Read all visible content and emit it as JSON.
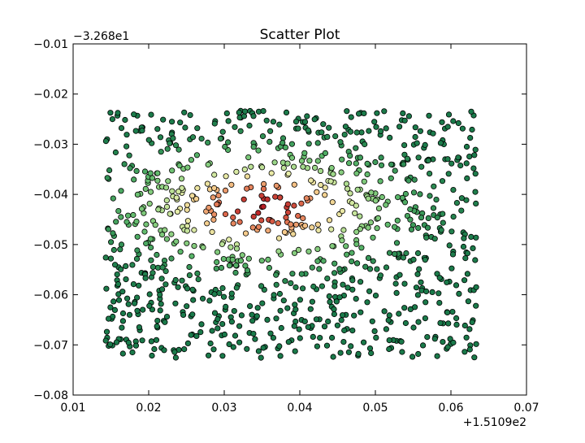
{
  "chart_data": {
    "type": "scatter",
    "title": "Scatter Plot",
    "xlabel": "",
    "ylabel": "",
    "x_offset_label": "+1.5109e2",
    "y_offset_label": "−3.268e1",
    "xlim": [
      0.01,
      0.07
    ],
    "ylim": [
      -0.08,
      -0.01
    ],
    "x_tick_values": [
      0.01,
      0.02,
      0.03,
      0.04,
      0.05,
      0.06,
      0.07
    ],
    "x_tick_labels": [
      "0.01",
      "0.02",
      "0.03",
      "0.04",
      "0.05",
      "0.06",
      "0.07"
    ],
    "y_tick_values": [
      -0.01,
      -0.02,
      -0.03,
      -0.04,
      -0.05,
      -0.06,
      -0.07,
      -0.08
    ],
    "y_tick_labels": [
      "−0.01",
      "−0.02",
      "−0.03",
      "−0.04",
      "−0.05",
      "−0.06",
      "−0.07",
      "−0.08"
    ],
    "grid": false,
    "legend": "none",
    "colormap": [
      "#1a7a4a",
      "#5cb86a",
      "#9fd88a",
      "#e8eeaa",
      "#f6c98a",
      "#e07050",
      "#b81e24"
    ],
    "color_center": [
      0.035,
      -0.0425
    ],
    "point_count": 1000,
    "x_range": [
      0.0142,
      0.0634
    ],
    "y_range": [
      -0.0727,
      -0.0233
    ],
    "points": [
      [
        0.0152,
        -0.025
      ],
      [
        0.0185,
        -0.0243
      ],
      [
        0.0219,
        -0.0251
      ],
      [
        0.0255,
        -0.0242
      ],
      [
        0.0288,
        -0.0254
      ],
      [
        0.0322,
        -0.0247
      ],
      [
        0.0365,
        -0.0255
      ],
      [
        0.0398,
        -0.0249
      ],
      [
        0.0431,
        -0.026
      ],
      [
        0.0468,
        -0.0246
      ],
      [
        0.0502,
        -0.0238
      ],
      [
        0.0535,
        -0.0252
      ],
      [
        0.0571,
        -0.0243
      ],
      [
        0.061,
        -0.0258
      ],
      [
        0.0628,
        -0.0271
      ],
      [
        0.0145,
        -0.029
      ],
      [
        0.0171,
        -0.0281
      ],
      [
        0.0204,
        -0.0298
      ],
      [
        0.0236,
        -0.0302
      ],
      [
        0.027,
        -0.0289
      ],
      [
        0.0305,
        -0.0296
      ],
      [
        0.034,
        -0.0301
      ],
      [
        0.0378,
        -0.0288
      ],
      [
        0.0412,
        -0.0299
      ],
      [
        0.0447,
        -0.0284
      ],
      [
        0.0483,
        -0.0295
      ],
      [
        0.0519,
        -0.0287
      ],
      [
        0.0551,
        -0.0301
      ],
      [
        0.0589,
        -0.0292
      ],
      [
        0.0621,
        -0.0305
      ],
      [
        0.0148,
        -0.0352
      ],
      [
        0.0178,
        -0.0343
      ],
      [
        0.0211,
        -0.0358
      ],
      [
        0.0246,
        -0.0349
      ],
      [
        0.0281,
        -0.0338
      ],
      [
        0.0316,
        -0.0355
      ],
      [
        0.0349,
        -0.0344
      ],
      [
        0.0384,
        -0.0361
      ],
      [
        0.042,
        -0.0347
      ],
      [
        0.0455,
        -0.0356
      ],
      [
        0.0491,
        -0.0341
      ],
      [
        0.0526,
        -0.0353
      ],
      [
        0.0561,
        -0.0345
      ],
      [
        0.0597,
        -0.0359
      ],
      [
        0.063,
        -0.0348
      ],
      [
        0.0153,
        -0.0408
      ],
      [
        0.0189,
        -0.0399
      ],
      [
        0.0224,
        -0.0412
      ],
      [
        0.0259,
        -0.0404
      ],
      [
        0.0293,
        -0.0416
      ],
      [
        0.0326,
        -0.041
      ],
      [
        0.035,
        -0.0425
      ],
      [
        0.0374,
        -0.0406
      ],
      [
        0.0402,
        -0.0418
      ],
      [
        0.0433,
        -0.0401
      ],
      [
        0.0466,
        -0.0414
      ],
      [
        0.05,
        -0.0398
      ],
      [
        0.0537,
        -0.0411
      ],
      [
        0.0572,
        -0.0403
      ],
      [
        0.0608,
        -0.0417
      ],
      [
        0.0146,
        -0.0468
      ],
      [
        0.0182,
        -0.0459
      ],
      [
        0.0216,
        -0.0472
      ],
      [
        0.0251,
        -0.0463
      ],
      [
        0.0284,
        -0.0475
      ],
      [
        0.0312,
        -0.0458
      ],
      [
        0.0338,
        -0.0466
      ],
      [
        0.0361,
        -0.0451
      ],
      [
        0.0389,
        -0.0473
      ],
      [
        0.0424,
        -0.046
      ],
      [
        0.0458,
        -0.0471
      ],
      [
        0.0494,
        -0.0456
      ],
      [
        0.0529,
        -0.0469
      ],
      [
        0.0565,
        -0.0461
      ],
      [
        0.0601,
        -0.0474
      ],
      [
        0.015,
        -0.0528
      ],
      [
        0.0187,
        -0.0519
      ],
      [
        0.0221,
        -0.0532
      ],
      [
        0.0257,
        -0.0523
      ],
      [
        0.029,
        -0.0535
      ],
      [
        0.0324,
        -0.0521
      ],
      [
        0.0358,
        -0.053
      ],
      [
        0.0393,
        -0.0517
      ],
      [
        0.0427,
        -0.0529
      ],
      [
        0.0462,
        -0.052
      ],
      [
        0.0497,
        -0.0533
      ],
      [
        0.0532,
        -0.0518
      ],
      [
        0.0567,
        -0.0527
      ],
      [
        0.0603,
        -0.0514
      ],
      [
        0.0632,
        -0.0531
      ],
      [
        0.0144,
        -0.0588
      ],
      [
        0.018,
        -0.0579
      ],
      [
        0.0214,
        -0.0592
      ],
      [
        0.0249,
        -0.0583
      ],
      [
        0.0283,
        -0.0595
      ],
      [
        0.0318,
        -0.0581
      ],
      [
        0.0353,
        -0.059
      ],
      [
        0.0388,
        -0.0577
      ],
      [
        0.0422,
        -0.0589
      ],
      [
        0.0457,
        -0.058
      ],
      [
        0.0492,
        -0.0593
      ],
      [
        0.0527,
        -0.0578
      ],
      [
        0.0562,
        -0.0587
      ],
      [
        0.0598,
        -0.0574
      ],
      [
        0.0626,
        -0.0591
      ],
      [
        0.0151,
        -0.0648
      ],
      [
        0.0186,
        -0.0639
      ],
      [
        0.022,
        -0.0652
      ],
      [
        0.0256,
        -0.0643
      ],
      [
        0.0289,
        -0.0655
      ],
      [
        0.0323,
        -0.0641
      ],
      [
        0.0357,
        -0.065
      ],
      [
        0.0392,
        -0.0637
      ],
      [
        0.0426,
        -0.0649
      ],
      [
        0.0461,
        -0.064
      ],
      [
        0.0496,
        -0.0653
      ],
      [
        0.0531,
        -0.0638
      ],
      [
        0.0566,
        -0.0647
      ],
      [
        0.0602,
        -0.0634
      ],
      [
        0.0629,
        -0.0651
      ],
      [
        0.0147,
        -0.0702
      ],
      [
        0.0183,
        -0.0693
      ],
      [
        0.0217,
        -0.0706
      ],
      [
        0.0252,
        -0.0697
      ],
      [
        0.0286,
        -0.0709
      ],
      [
        0.032,
        -0.0695
      ],
      [
        0.0354,
        -0.0704
      ],
      [
        0.0389,
        -0.0691
      ],
      [
        0.0423,
        -0.0703
      ],
      [
        0.0458,
        -0.0694
      ],
      [
        0.0493,
        -0.0707
      ],
      [
        0.0528,
        -0.0692
      ],
      [
        0.0563,
        -0.0701
      ],
      [
        0.0599,
        -0.0688
      ],
      [
        0.0631,
        -0.0725
      ]
    ]
  }
}
